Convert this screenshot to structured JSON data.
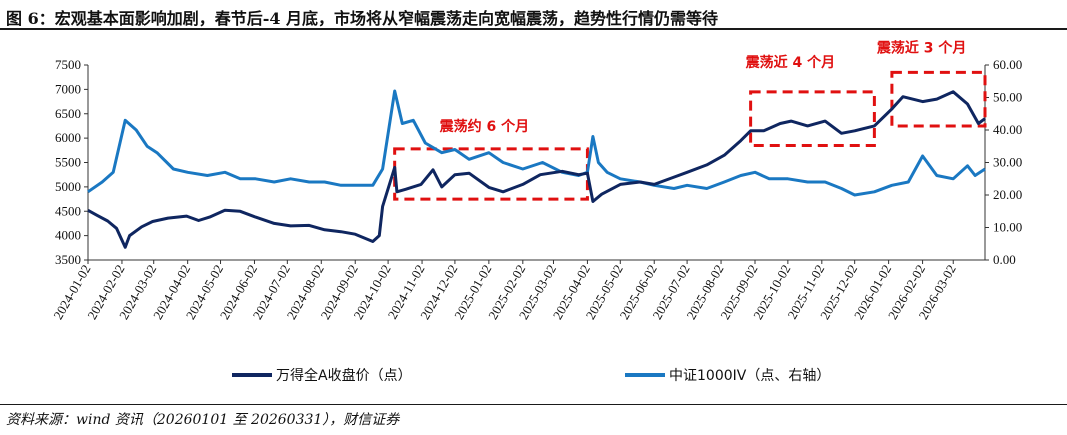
{
  "title": "图 6：宏观基本面影响加剧，春节后-4 月底，市场将从窄幅震荡走向宽幅震荡，趋势性行情仍需等待",
  "source": "资料来源：wind 资讯（20260101 至 20260331），财信证券",
  "chart_data": {
    "type": "line",
    "x_ticks": [
      "2024-01-02",
      "2024-02-02",
      "2024-03-02",
      "2024-04-02",
      "2024-05-02",
      "2024-06-02",
      "2024-07-02",
      "2024-08-02",
      "2024-09-02",
      "2024-10-02",
      "2024-11-02",
      "2024-12-02",
      "2025-01-02",
      "2025-02-02",
      "2025-03-02",
      "2025-04-02",
      "2025-05-02",
      "2025-06-02",
      "2025-07-02",
      "2025-08-02",
      "2025-09-02",
      "2025-10-02",
      "2025-11-02",
      "2025-12-02",
      "2026-01-02",
      "2026-02-02",
      "2026-03-02"
    ],
    "y_left": {
      "min": 3500,
      "max": 7500,
      "ticks": [
        "3500",
        "4000",
        "4500",
        "5000",
        "5500",
        "6000",
        "6500",
        "7000",
        "7500"
      ]
    },
    "y_right": {
      "min": 0,
      "max": 60,
      "ticks": [
        "0.00",
        "10.00",
        "20.00",
        "30.00",
        "40.00",
        "50.00",
        "60.00"
      ]
    },
    "series": [
      {
        "name": "万得全A收盘价（点）",
        "axis": "left",
        "color": "#0f2660",
        "points": [
          [
            "2024-01-02",
            4520
          ],
          [
            "2024-01-10",
            4420
          ],
          [
            "2024-01-20",
            4300
          ],
          [
            "2024-01-28",
            4150
          ],
          [
            "2024-02-05",
            3760
          ],
          [
            "2024-02-09",
            4000
          ],
          [
            "2024-02-20",
            4180
          ],
          [
            "2024-03-01",
            4290
          ],
          [
            "2024-03-15",
            4360
          ],
          [
            "2024-04-01",
            4400
          ],
          [
            "2024-04-12",
            4310
          ],
          [
            "2024-04-22",
            4380
          ],
          [
            "2024-05-06",
            4520
          ],
          [
            "2024-05-20",
            4500
          ],
          [
            "2024-06-03",
            4380
          ],
          [
            "2024-06-20",
            4250
          ],
          [
            "2024-07-05",
            4200
          ],
          [
            "2024-07-22",
            4210
          ],
          [
            "2024-08-05",
            4120
          ],
          [
            "2024-08-20",
            4080
          ],
          [
            "2024-09-02",
            4030
          ],
          [
            "2024-09-18",
            3880
          ],
          [
            "2024-09-24",
            4000
          ],
          [
            "2024-09-27",
            4600
          ],
          [
            "2024-10-08",
            5400
          ],
          [
            "2024-10-10",
            4900
          ],
          [
            "2024-10-18",
            4950
          ],
          [
            "2024-11-01",
            5050
          ],
          [
            "2024-11-12",
            5350
          ],
          [
            "2024-11-20",
            5000
          ],
          [
            "2024-12-02",
            5250
          ],
          [
            "2024-12-15",
            5280
          ],
          [
            "2025-01-02",
            4990
          ],
          [
            "2025-01-15",
            4900
          ],
          [
            "2025-02-02",
            5050
          ],
          [
            "2025-02-18",
            5250
          ],
          [
            "2025-03-10",
            5320
          ],
          [
            "2025-03-25",
            5250
          ],
          [
            "2025-04-02",
            5280
          ],
          [
            "2025-04-07",
            4700
          ],
          [
            "2025-04-15",
            4850
          ],
          [
            "2025-05-02",
            5050
          ],
          [
            "2025-05-20",
            5100
          ],
          [
            "2025-06-02",
            5050
          ],
          [
            "2025-06-20",
            5200
          ],
          [
            "2025-07-02",
            5300
          ],
          [
            "2025-07-20",
            5450
          ],
          [
            "2025-08-05",
            5650
          ],
          [
            "2025-08-20",
            5950
          ],
          [
            "2025-08-29",
            6150
          ],
          [
            "2025-09-10",
            6150
          ],
          [
            "2025-09-25",
            6300
          ],
          [
            "2025-10-05",
            6350
          ],
          [
            "2025-10-20",
            6250
          ],
          [
            "2025-11-05",
            6350
          ],
          [
            "2025-11-20",
            6100
          ],
          [
            "2025-12-02",
            6150
          ],
          [
            "2025-12-20",
            6250
          ],
          [
            "2026-01-05",
            6600
          ],
          [
            "2026-01-15",
            6850
          ],
          [
            "2026-02-02",
            6750
          ],
          [
            "2026-02-15",
            6800
          ],
          [
            "2026-03-02",
            6950
          ],
          [
            "2026-03-15",
            6700
          ],
          [
            "2026-03-25",
            6300
          ],
          [
            "2026-03-31",
            6400
          ]
        ]
      },
      {
        "name": "中证1000IV（点、右轴）",
        "axis": "right",
        "color": "#1a78c2",
        "points": [
          [
            "2024-01-02",
            21
          ],
          [
            "2024-01-15",
            24
          ],
          [
            "2024-01-25",
            27
          ],
          [
            "2024-02-05",
            43
          ],
          [
            "2024-02-15",
            40
          ],
          [
            "2024-02-25",
            35
          ],
          [
            "2024-03-05",
            33
          ],
          [
            "2024-03-20",
            28
          ],
          [
            "2024-04-02",
            27
          ],
          [
            "2024-04-20",
            26
          ],
          [
            "2024-05-06",
            27
          ],
          [
            "2024-05-20",
            25
          ],
          [
            "2024-06-03",
            25
          ],
          [
            "2024-06-20",
            24
          ],
          [
            "2024-07-05",
            25
          ],
          [
            "2024-07-22",
            24
          ],
          [
            "2024-08-05",
            24
          ],
          [
            "2024-08-20",
            23
          ],
          [
            "2024-09-02",
            23
          ],
          [
            "2024-09-18",
            23
          ],
          [
            "2024-09-27",
            28
          ],
          [
            "2024-10-08",
            52
          ],
          [
            "2024-10-15",
            42
          ],
          [
            "2024-10-25",
            43
          ],
          [
            "2024-11-05",
            36
          ],
          [
            "2024-11-20",
            33
          ],
          [
            "2024-12-02",
            34
          ],
          [
            "2024-12-15",
            31
          ],
          [
            "2025-01-02",
            33
          ],
          [
            "2025-01-15",
            30
          ],
          [
            "2025-02-02",
            28
          ],
          [
            "2025-02-20",
            30
          ],
          [
            "2025-03-10",
            27
          ],
          [
            "2025-03-25",
            26
          ],
          [
            "2025-04-02",
            27
          ],
          [
            "2025-04-07",
            38
          ],
          [
            "2025-04-12",
            30
          ],
          [
            "2025-04-20",
            27
          ],
          [
            "2025-05-02",
            25
          ],
          [
            "2025-05-20",
            24
          ],
          [
            "2025-06-02",
            23
          ],
          [
            "2025-06-20",
            22
          ],
          [
            "2025-07-02",
            23
          ],
          [
            "2025-07-20",
            22
          ],
          [
            "2025-08-05",
            24
          ],
          [
            "2025-08-20",
            26
          ],
          [
            "2025-09-02",
            27
          ],
          [
            "2025-09-15",
            25
          ],
          [
            "2025-10-02",
            25
          ],
          [
            "2025-10-20",
            24
          ],
          [
            "2025-11-05",
            24
          ],
          [
            "2025-11-20",
            22
          ],
          [
            "2025-12-02",
            20
          ],
          [
            "2025-12-20",
            21
          ],
          [
            "2026-01-05",
            23
          ],
          [
            "2026-01-20",
            24
          ],
          [
            "2026-02-02",
            32
          ],
          [
            "2026-02-15",
            26
          ],
          [
            "2026-03-02",
            25
          ],
          [
            "2026-03-15",
            29
          ],
          [
            "2026-03-22",
            26
          ],
          [
            "2026-03-31",
            28
          ]
        ]
      }
    ],
    "annotations": [
      {
        "label": "震荡约 6 个月",
        "from": "2024-10-08",
        "to": "2025-04-02",
        "y_low": 4750,
        "y_high": 5780
      },
      {
        "label": "震荡近 4 个月",
        "from": "2025-08-29",
        "to": "2025-12-20",
        "y_low": 5850,
        "y_high": 6950
      },
      {
        "label": "震荡近 3 个月",
        "from": "2026-01-05",
        "to": "2026-03-31",
        "y_low": 6250,
        "y_high": 7350
      }
    ],
    "grid": false,
    "legend_position": "bottom"
  }
}
